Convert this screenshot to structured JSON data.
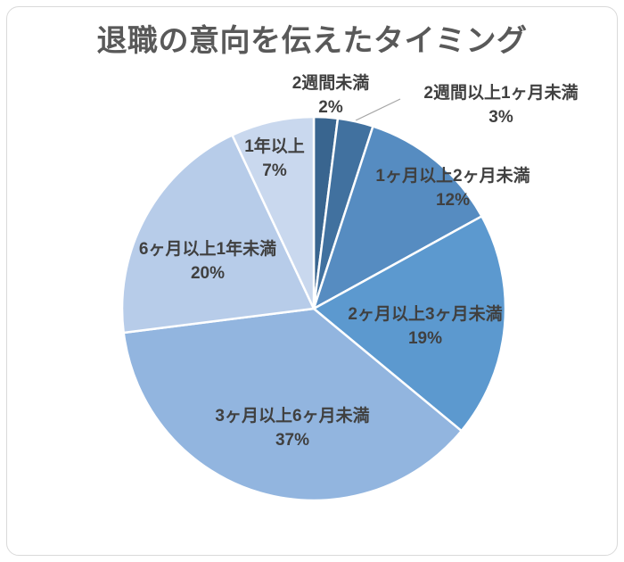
{
  "page": {
    "background": "#FFFFFF",
    "frame_border_color": "#D9D9D9"
  },
  "chart_data": {
    "type": "pie",
    "title": "退職の意向を伝えたタイミング",
    "title_color": "#595959",
    "label_color": "#404040",
    "slice_border_color": "#FFFFFF",
    "leader_line_color": "#A6A6A6",
    "start_angle_deg": 0,
    "direction": "clockwise",
    "legend": "none",
    "labels_style": "category name + percentage",
    "slices": [
      {
        "label": "2週間未満",
        "value": 2,
        "pct_label": "2%",
        "color": "#39658F"
      },
      {
        "label": "2週間以上1ヶ月未満",
        "value": 3,
        "pct_label": "3%",
        "color": "#41719F"
      },
      {
        "label": "1ヶ月以上2ヶ月未満",
        "value": 12,
        "pct_label": "12%",
        "color": "#568CC1"
      },
      {
        "label": "2ヶ月以上3ヶ月未満",
        "value": 19,
        "pct_label": "19%",
        "color": "#5C99CF"
      },
      {
        "label": "3ヶ月以上6ヶ月未満",
        "value": 37,
        "pct_label": "37%",
        "color": "#92B5DF"
      },
      {
        "label": "6ヶ月以上1年未満",
        "value": 20,
        "pct_label": "20%",
        "color": "#B7CCE9"
      },
      {
        "label": "1年以上",
        "value": 7,
        "pct_label": "7%",
        "color": "#C9D8EE"
      }
    ]
  }
}
